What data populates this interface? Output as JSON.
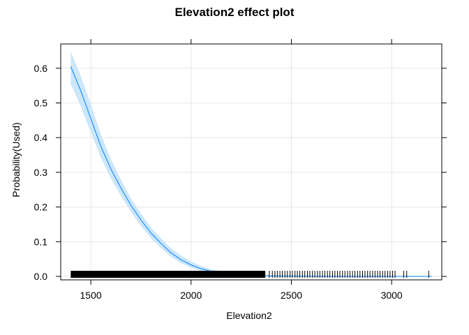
{
  "chart_data": {
    "type": "line",
    "title": "Elevation2 effect plot",
    "xlabel": "Elevation2",
    "ylabel": "Probability(Used)",
    "xlim": [
      1350,
      3250
    ],
    "ylim": [
      -0.01,
      0.67
    ],
    "x_ticks": [
      1500,
      2000,
      2500,
      3000
    ],
    "y_ticks": [
      0.0,
      0.1,
      0.2,
      0.3,
      0.4,
      0.5,
      0.6
    ],
    "grid": true,
    "colors": {
      "line": "#0080ff",
      "band": "#cce6fa",
      "grid": "#e6e6e6",
      "frame": "#000000",
      "rug": "#000000"
    },
    "series": [
      {
        "x": [
          1400,
          1450,
          1500,
          1550,
          1600,
          1650,
          1700,
          1750,
          1800,
          1850,
          1900,
          1950,
          2000,
          2050,
          2100,
          2150,
          2200,
          2250,
          2300,
          2350,
          2400,
          2500,
          2600,
          2700,
          2800,
          2900,
          3000,
          3100,
          3200
        ],
        "values": [
          0.605,
          0.535,
          0.455,
          0.375,
          0.31,
          0.255,
          0.205,
          0.163,
          0.125,
          0.095,
          0.068,
          0.048,
          0.033,
          0.022,
          0.015,
          0.01,
          0.0067,
          0.0045,
          0.003,
          0.002,
          0.0014,
          0.0007,
          0.0003,
          0.00015,
          7e-05,
          3e-05,
          1e-05,
          5e-06,
          2e-06
        ],
        "lower": [
          0.555,
          0.49,
          0.415,
          0.342,
          0.283,
          0.232,
          0.186,
          0.146,
          0.11,
          0.082,
          0.056,
          0.038,
          0.025,
          0.016,
          0.01,
          0.0063,
          0.004,
          0.0025,
          0.0016,
          0.001,
          0.0006,
          0.0002,
          0.0001,
          4e-05,
          1e-05,
          0.0,
          0.0,
          0.0,
          0.0
        ],
        "upper": [
          0.648,
          0.578,
          0.496,
          0.41,
          0.338,
          0.279,
          0.225,
          0.181,
          0.141,
          0.11,
          0.081,
          0.06,
          0.043,
          0.03,
          0.021,
          0.015,
          0.0105,
          0.0075,
          0.0053,
          0.0038,
          0.0027,
          0.0015,
          0.0008,
          0.0005,
          0.0003,
          0.0002,
          0.0001,
          8e-05,
          5e-05
        ]
      }
    ],
    "rug": {
      "dense_range": [
        1400,
        2370
      ],
      "values": [
        2390,
        2405,
        2418,
        2430,
        2443,
        2455,
        2468,
        2480,
        2493,
        2505,
        2518,
        2530,
        2542,
        2555,
        2567,
        2580,
        2592,
        2605,
        2617,
        2630,
        2642,
        2655,
        2667,
        2680,
        2692,
        2705,
        2717,
        2730,
        2742,
        2755,
        2767,
        2780,
        2792,
        2805,
        2817,
        2830,
        2842,
        2855,
        2867,
        2880,
        2892,
        2905,
        2917,
        2930,
        2942,
        2955,
        2967,
        2980,
        2992,
        3005,
        3017,
        3060,
        3075,
        3185
      ]
    }
  }
}
